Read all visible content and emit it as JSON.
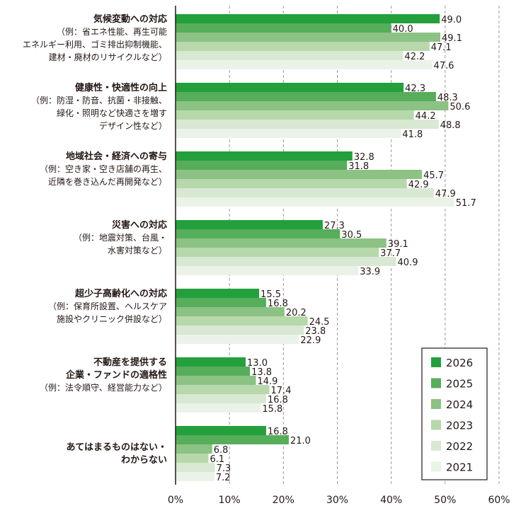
{
  "chart_data": {
    "type": "bar",
    "orientation": "horizontal",
    "xlim": [
      0,
      60
    ],
    "x_ticks": [
      "0%",
      "10%",
      "20%",
      "30%",
      "40%",
      "50%",
      "60%"
    ],
    "grid": true,
    "legend_position": "bottom-right",
    "categories": [
      {
        "title": "気候変動への対応",
        "sub": [
          "（例：省エネ性能、再生可能",
          "エネルギー利用、ゴミ排出抑制機能、",
          "建材・廃材のリサイクルなど）"
        ]
      },
      {
        "title": "健康性・快適性の向上",
        "sub": [
          "（例：防湿・防音、抗菌・非接触、",
          "緑化・照明など快適さを増す",
          "デザイン性など）"
        ]
      },
      {
        "title": "地域社会・経済への寄与",
        "sub": [
          "（例：空き家・空き店舗の再生、",
          "近隣を巻き込んだ再開発など）"
        ]
      },
      {
        "title": "災害への対応",
        "sub": [
          "（例：地震対策、台風・",
          "水害対策など）"
        ]
      },
      {
        "title": "超少子高齢化への対応",
        "sub": [
          "（例：保育所設置、ヘルスケア",
          "施設やクリニック併設など）"
        ]
      },
      {
        "title": "不動産を提供する\n企業・ファンドの適格性",
        "sub": [
          "（例：法令順守、経営能力など）"
        ]
      },
      {
        "title": "あてはまるものはない・\nわからない",
        "sub": []
      }
    ],
    "series": [
      {
        "name": "2026",
        "color": "#23a03c",
        "values": [
          49.0,
          42.3,
          32.8,
          27.3,
          15.5,
          13.0,
          16.8
        ]
      },
      {
        "name": "2025",
        "color": "#56ad5a",
        "values": [
          40.0,
          48.3,
          31.8,
          30.5,
          16.8,
          13.8,
          21.0
        ]
      },
      {
        "name": "2024",
        "color": "#8cc283",
        "values": [
          49.1,
          50.6,
          45.7,
          39.1,
          20.2,
          14.9,
          6.8
        ]
      },
      {
        "name": "2023",
        "color": "#b6d8ab",
        "values": [
          47.1,
          44.2,
          42.9,
          37.7,
          24.5,
          17.4,
          6.1
        ]
      },
      {
        "name": "2022",
        "color": "#d8e8d3",
        "values": [
          42.2,
          48.8,
          47.9,
          40.9,
          23.8,
          16.8,
          7.3
        ]
      },
      {
        "name": "2021",
        "color": "#ebf2e8",
        "values": [
          47.6,
          41.8,
          51.7,
          33.9,
          22.9,
          15.8,
          7.2
        ]
      }
    ]
  }
}
